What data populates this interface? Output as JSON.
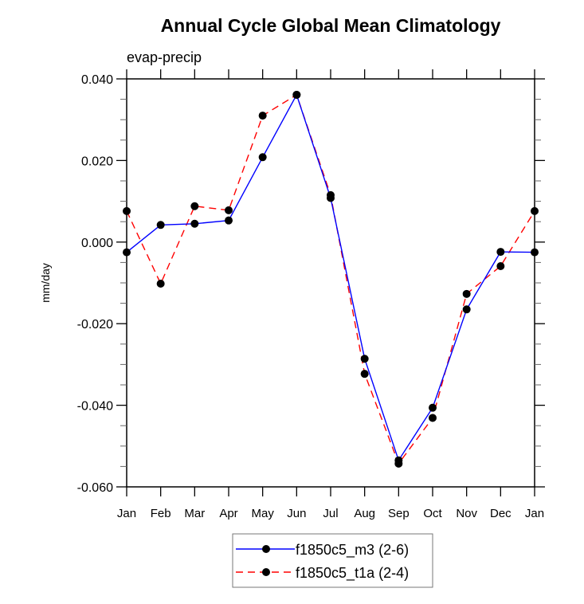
{
  "chart_data": {
    "type": "line",
    "title": "Annual Cycle Global Mean Climatology",
    "subtitle": "evap-precip",
    "xlabel": "",
    "ylabel": "mm/day",
    "categories": [
      "Jan",
      "Feb",
      "Mar",
      "Apr",
      "May",
      "Jun",
      "Jul",
      "Aug",
      "Sep",
      "Oct",
      "Nov",
      "Dec",
      "Jan"
    ],
    "ylim": [
      -0.06,
      0.04
    ],
    "yticks": [
      -0.06,
      -0.04,
      -0.02,
      0.0,
      0.02,
      0.04
    ],
    "ytick_labels": [
      "-0.060",
      "-0.040",
      "-0.020",
      "0.000",
      "0.020",
      "0.040"
    ],
    "yminor_step": 0.005,
    "grid": false,
    "legend_position": "bottom-center",
    "series": [
      {
        "name": "f1850c5_m3 (2-6)",
        "color": "#0000ff",
        "dash": "solid",
        "marker": "filled-circle",
        "values": [
          -0.0025,
          0.0042,
          0.0045,
          0.0053,
          0.0208,
          0.0361,
          0.0108,
          -0.0286,
          -0.0535,
          -0.0406,
          -0.0165,
          -0.0024,
          -0.0025
        ]
      },
      {
        "name": "f1850c5_t1a (2-4)",
        "color": "#ff0000",
        "dash": "dashed",
        "marker": "filled-circle",
        "values": [
          0.0076,
          -0.0102,
          0.0088,
          0.0078,
          0.031,
          0.0361,
          0.0115,
          -0.0323,
          -0.0543,
          -0.0431,
          -0.0127,
          -0.0059,
          0.0076
        ]
      }
    ]
  }
}
